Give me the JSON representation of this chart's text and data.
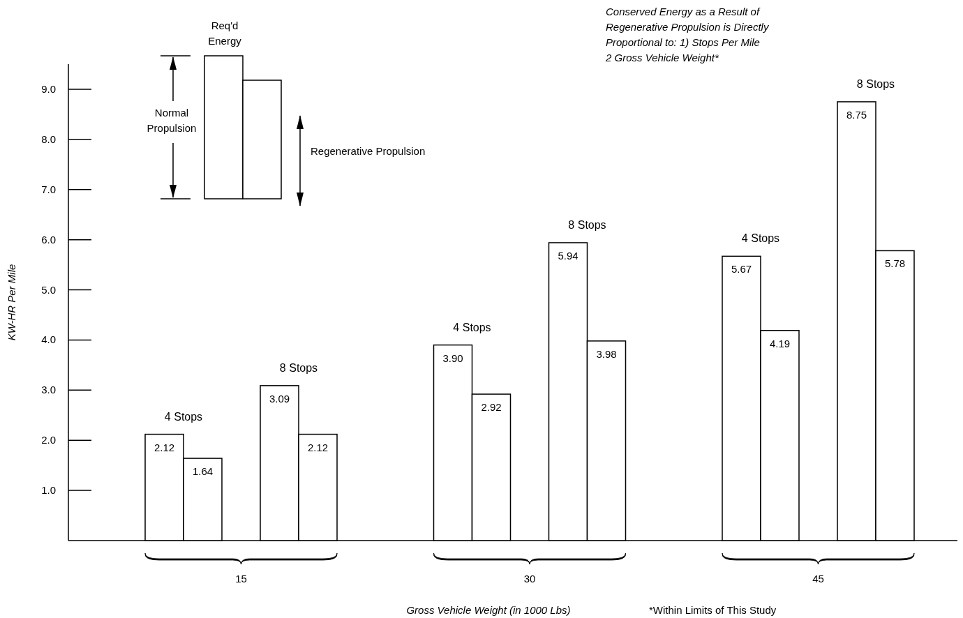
{
  "chart_data": {
    "type": "bar",
    "xlabel": "Gross Vehicle Weight (in 1000 Lbs)",
    "ylabel": "KW-HR Per Mile",
    "categories": [
      "15",
      "30",
      "45"
    ],
    "series": [
      {
        "color": "#ffffff",
        "values": [
          2.12,
          3.9,
          5.67
        ],
        "value_labels": [
          "2.12",
          "3.90",
          "5.67"
        ]
      },
      {
        "color": "#ffffff",
        "values": [
          1.64,
          2.92,
          4.19
        ],
        "value_labels": [
          "1.64",
          "2.92",
          "4.19"
        ]
      },
      {
        "color": "#ffffff",
        "values": [
          3.09,
          5.94,
          8.75
        ],
        "value_labels": [
          "3.09",
          "5.94",
          "8.75"
        ]
      },
      {
        "color": "#ffffff",
        "values": [
          2.12,
          3.98,
          5.78
        ],
        "value_labels": [
          "2.12",
          "3.98",
          "5.78"
        ]
      }
    ],
    "ylim": [
      0,
      9.5
    ],
    "yticks": [
      {
        "value": 1,
        "label": "1.0"
      },
      {
        "value": 2,
        "label": "2.0"
      },
      {
        "value": 3,
        "label": "3.0"
      },
      {
        "value": 4,
        "label": "4.0"
      },
      {
        "value": 5,
        "label": "5.0"
      },
      {
        "value": 6,
        "label": "6.0"
      },
      {
        "value": 7,
        "label": "7.0"
      },
      {
        "value": 8,
        "label": "8.0"
      },
      {
        "value": 9,
        "label": "9.0"
      }
    ],
    "grid": false,
    "annotations": [
      "Conserved Energy as a Result of\nRegenerative Propulsion is Directly\nProportional to: 1) Stops Per Mile\n2  Gross Vehicle Weight*",
      "Req'd\nEnergy",
      "Normal\nPropulsion",
      "Regenerative Propulsion",
      "4 Stops",
      "8 Stops",
      "4 Stops",
      "8 Stops",
      "4 Stops",
      "8 Stops",
      "*Within Limits of This Study"
    ]
  }
}
